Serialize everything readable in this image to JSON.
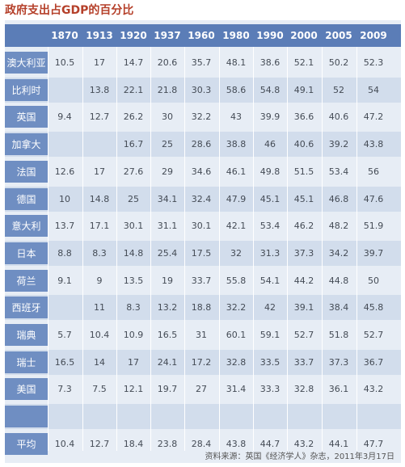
{
  "title": "政府支出占GDP的百分比",
  "years": [
    "1870",
    "1913",
    "1920",
    "1937",
    "1960",
    "1980",
    "1990",
    "2000",
    "2005",
    "2009"
  ],
  "rows": [
    {
      "country": "澳大利亚",
      "values": [
        "10.5",
        "17",
        "14.7",
        "20.6",
        "35.7",
        "48.1",
        "38.6",
        "52.1",
        "50.2",
        "52.3"
      ]
    },
    {
      "country": "比利时",
      "values": [
        "",
        "13.8",
        "22.1",
        "21.8",
        "30.3",
        "58.6",
        "54.8",
        "49.1",
        "52",
        "54"
      ]
    },
    {
      "country": "英国",
      "values": [
        "9.4",
        "12.7",
        "26.2",
        "30",
        "32.2",
        "43",
        "39.9",
        "36.6",
        "40.6",
        "47.2"
      ]
    },
    {
      "country": "加拿大",
      "values": [
        "",
        "",
        "16.7",
        "25",
        "28.6",
        "38.8",
        "46",
        "40.6",
        "39.2",
        "43.8"
      ]
    },
    {
      "country": "法国",
      "values": [
        "12.6",
        "17",
        "27.6",
        "29",
        "34.6",
        "46.1",
        "49.8",
        "51.5",
        "53.4",
        "56"
      ]
    },
    {
      "country": "德国",
      "values": [
        "10",
        "14.8",
        "25",
        "34.1",
        "32.4",
        "47.9",
        "45.1",
        "45.1",
        "46.8",
        "47.6"
      ]
    },
    {
      "country": "意大利",
      "values": [
        "13.7",
        "17.1",
        "30.1",
        "31.1",
        "30.1",
        "42.1",
        "53.4",
        "46.2",
        "48.2",
        "51.9"
      ]
    },
    {
      "country": "日本",
      "values": [
        "8.8",
        "8.3",
        "14.8",
        "25.4",
        "17.5",
        "32",
        "31.3",
        "37.3",
        "34.2",
        "39.7"
      ]
    },
    {
      "country": "荷兰",
      "values": [
        "9.1",
        "9",
        "13.5",
        "19",
        "33.7",
        "55.8",
        "54.1",
        "44.2",
        "44.8",
        "50"
      ]
    },
    {
      "country": "西班牙",
      "values": [
        "",
        "11",
        "8.3",
        "13.2",
        "18.8",
        "32.2",
        "42",
        "39.1",
        "38.4",
        "45.8"
      ]
    },
    {
      "country": "瑞典",
      "values": [
        "5.7",
        "10.4",
        "10.9",
        "16.5",
        "31",
        "60.1",
        "59.1",
        "52.7",
        "51.8",
        "52.7"
      ]
    },
    {
      "country": "瑞士",
      "values": [
        "16.5",
        "14",
        "17",
        "24.1",
        "17.2",
        "32.8",
        "33.5",
        "33.7",
        "37.3",
        "36.7"
      ]
    },
    {
      "country": "美国",
      "values": [
        "7.3",
        "7.5",
        "12.1",
        "19.7",
        "27",
        "31.4",
        "33.3",
        "32.8",
        "36.1",
        "43.2"
      ]
    },
    {
      "country": "",
      "values": [
        "",
        "",
        "",
        "",
        "",
        "",
        "",
        "",
        "",
        ""
      ]
    },
    {
      "country": "平均",
      "values": [
        "10.4",
        "12.7",
        "18.4",
        "23.8",
        "28.4",
        "43.8",
        "44.7",
        "43.2",
        "44.1",
        "47.7"
      ]
    }
  ],
  "source": "资料来源：英国《经济学人》杂志，2011年3月17日",
  "colors": {
    "title": "#b5402a",
    "header_bg": "#5b7db7",
    "label_bg": "#6f8ec2",
    "row_light": "#e7edf5",
    "row_alt": "#d2ddec",
    "value_text": "#444b55"
  }
}
